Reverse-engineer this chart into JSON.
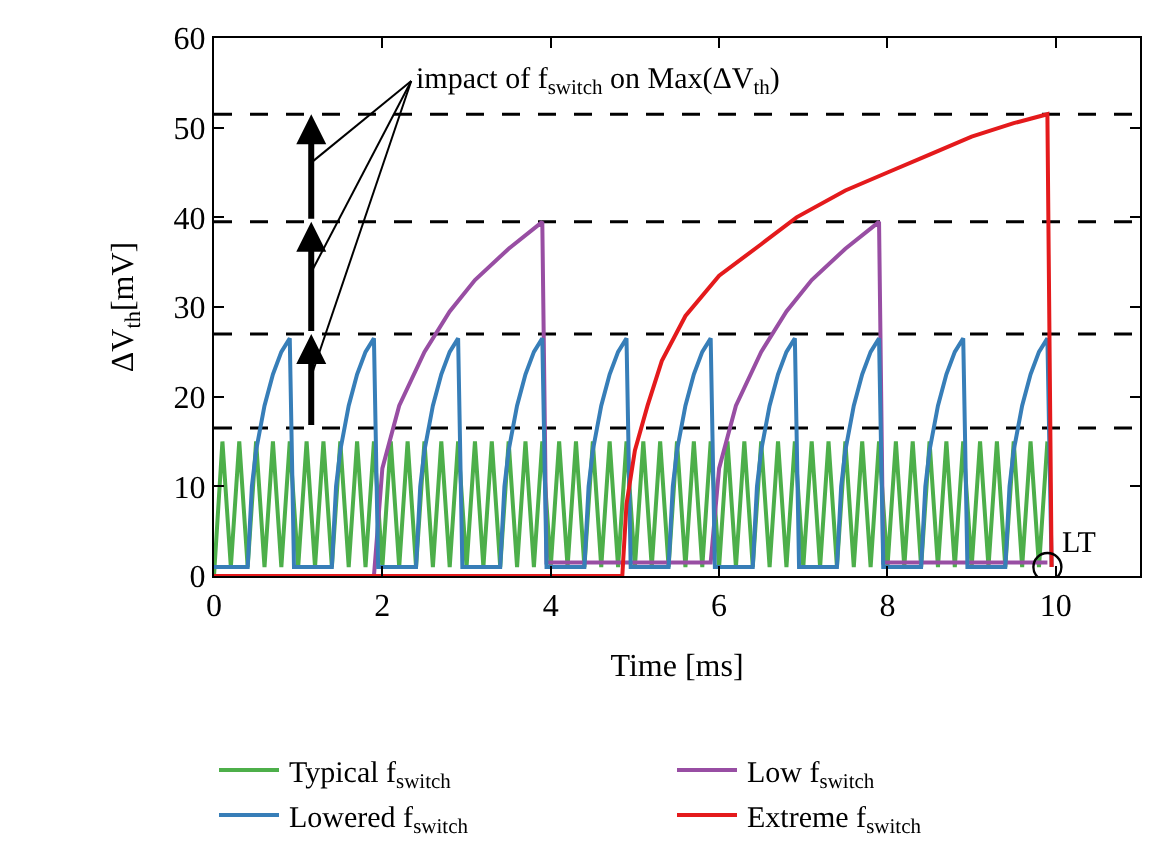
{
  "chart_data": {
    "type": "line",
    "xlabel": "Time [ms]",
    "ylabel": "ΔV$_{th}$[mV]",
    "xlim": [
      0,
      11
    ],
    "xticks": [
      0,
      2,
      4,
      6,
      8,
      10
    ],
    "ylim": [
      0,
      60
    ],
    "yticks": [
      0,
      10,
      20,
      30,
      40,
      50,
      60
    ],
    "grid": false,
    "legend": "bottom",
    "marker": "none",
    "line_style": "solid",
    "series": [
      {
        "name": "Typical f$_{switch}$",
        "color": "#4daf4a",
        "x": [
          0,
          0.1,
          0.2,
          0.3,
          0.4,
          0.5,
          0.6,
          0.7,
          0.8,
          0.9,
          1.0,
          1.1,
          1.2,
          1.3,
          1.4,
          1.5,
          1.6,
          1.7,
          1.8,
          1.9,
          2.0,
          2.1,
          2.2,
          2.3,
          2.4,
          2.5,
          2.6,
          2.7,
          2.8,
          2.9,
          3.0,
          3.1,
          3.2,
          3.3,
          3.4,
          3.5,
          3.6,
          3.7,
          3.8,
          3.9,
          4.0,
          4.1,
          4.2,
          4.3,
          4.4,
          4.5,
          4.6,
          4.7,
          4.8,
          4.9,
          5.0,
          5.1,
          5.2,
          5.3,
          5.4,
          5.5,
          5.6,
          5.7,
          5.8,
          5.9,
          6.0,
          6.1,
          6.2,
          6.3,
          6.4,
          6.5,
          6.6,
          6.7,
          6.8,
          6.9,
          7.0,
          7.1,
          7.2,
          7.3,
          7.4,
          7.5,
          7.6,
          7.7,
          7.8,
          7.9,
          8.0,
          8.1,
          8.2,
          8.3,
          8.4,
          8.5,
          8.6,
          8.7,
          8.8,
          8.9,
          9.0,
          9.1,
          9.2,
          9.3,
          9.4,
          9.5,
          9.6,
          9.7,
          9.8,
          9.9
        ],
        "values": [
          0,
          15,
          1,
          15,
          1,
          15,
          1,
          15,
          1,
          15,
          1,
          15,
          1,
          15,
          1,
          15,
          1,
          15,
          1,
          15,
          1,
          15,
          1,
          15,
          1,
          15,
          1,
          15,
          1,
          15,
          1,
          15,
          1,
          15,
          1,
          15,
          1,
          15,
          1,
          15,
          1,
          15,
          1,
          15,
          1,
          15,
          1,
          15,
          1,
          15,
          1,
          15,
          1,
          15,
          1,
          15,
          1,
          15,
          1,
          15,
          1,
          15,
          1,
          15,
          1,
          15,
          1,
          15,
          1,
          15,
          1,
          15,
          1,
          15,
          1,
          15,
          1,
          15,
          1,
          15,
          1,
          15,
          1,
          15,
          1,
          15,
          1,
          15,
          1,
          15,
          1,
          15,
          1,
          15,
          1,
          15,
          1,
          15,
          1,
          15
        ]
      },
      {
        "name": "Low f$_{switch}$",
        "color": "#984ea3",
        "x": [
          0,
          1.9,
          2.0,
          2.2,
          2.5,
          2.8,
          3.1,
          3.5,
          3.9,
          3.95,
          5.9,
          6.0,
          6.2,
          6.5,
          6.8,
          7.1,
          7.5,
          7.9,
          7.95,
          9.9
        ],
        "values": [
          0,
          0,
          12,
          19,
          25,
          29.5,
          33,
          36.5,
          39.5,
          1.5,
          1.5,
          12,
          19,
          25,
          29.5,
          33,
          36.5,
          39.5,
          1.5,
          1.5
        ]
      },
      {
        "name": "Lowered f$_{switch}$",
        "color": "#377eb8",
        "x": [
          0,
          0.4,
          0.45,
          0.5,
          0.6,
          0.7,
          0.8,
          0.9,
          0.95,
          1.4,
          1.45,
          1.5,
          1.6,
          1.7,
          1.8,
          1.9,
          1.95,
          2.4,
          2.45,
          2.5,
          2.6,
          2.7,
          2.8,
          2.9,
          2.95,
          3.4,
          3.45,
          3.5,
          3.6,
          3.7,
          3.8,
          3.9,
          3.95,
          4.4,
          4.45,
          4.5,
          4.6,
          4.7,
          4.8,
          4.9,
          4.95,
          5.4,
          5.45,
          5.5,
          5.6,
          5.7,
          5.8,
          5.9,
          5.95,
          6.4,
          6.45,
          6.5,
          6.6,
          6.7,
          6.8,
          6.9,
          6.95,
          7.4,
          7.45,
          7.5,
          7.6,
          7.7,
          7.8,
          7.9,
          7.95,
          8.4,
          8.45,
          8.5,
          8.6,
          8.7,
          8.8,
          8.9,
          8.95,
          9.4,
          9.45,
          9.5,
          9.6,
          9.7,
          9.8,
          9.9,
          9.95
        ],
        "values": [
          1,
          1,
          10,
          14,
          19,
          22.5,
          25,
          26.5,
          1,
          1,
          10,
          14,
          19,
          22.5,
          25,
          26.5,
          1,
          1,
          10,
          14,
          19,
          22.5,
          25,
          26.5,
          1,
          1,
          10,
          14,
          19,
          22.5,
          25,
          26.5,
          1,
          1,
          10,
          14,
          19,
          22.5,
          25,
          26.5,
          1,
          1,
          10,
          14,
          19,
          22.5,
          25,
          26.5,
          1,
          1,
          10,
          14,
          19,
          22.5,
          25,
          26.5,
          1,
          1,
          10,
          14,
          19,
          22.5,
          25,
          26.5,
          1,
          1,
          10,
          14,
          19,
          22.5,
          25,
          26.5,
          1,
          1,
          10,
          14,
          19,
          22.5,
          25,
          26.5,
          1
        ]
      },
      {
        "name": "Extreme f$_{switch}$",
        "color": "#e41a1c",
        "x": [
          0,
          4.85,
          4.9,
          5.0,
          5.15,
          5.32,
          5.6,
          6.0,
          6.5,
          6.92,
          7.5,
          8.0,
          8.5,
          9.0,
          9.5,
          9.9,
          9.95
        ],
        "values": [
          0,
          0,
          8,
          14,
          19,
          24,
          29,
          33.5,
          37,
          40,
          43,
          45,
          47,
          49,
          50.5,
          51.5,
          1
        ]
      }
    ],
    "ref_lines": [
      {
        "axis": "y",
        "value": 16.5,
        "color": "#000000",
        "line_style": "dashed"
      },
      {
        "axis": "y",
        "value": 27,
        "color": "#000000",
        "line_style": "dashed"
      },
      {
        "axis": "y",
        "value": 39.5,
        "color": "#000000",
        "line_style": "dashed"
      },
      {
        "axis": "y",
        "value": 51.5,
        "color": "#000000",
        "line_style": "dashed"
      }
    ],
    "annotations": [
      "impact of f$_{switch}$ on Max(ΔV$_{th}$)",
      {
        "text": "LT",
        "x": 9.9,
        "y": 1
      }
    ]
  }
}
